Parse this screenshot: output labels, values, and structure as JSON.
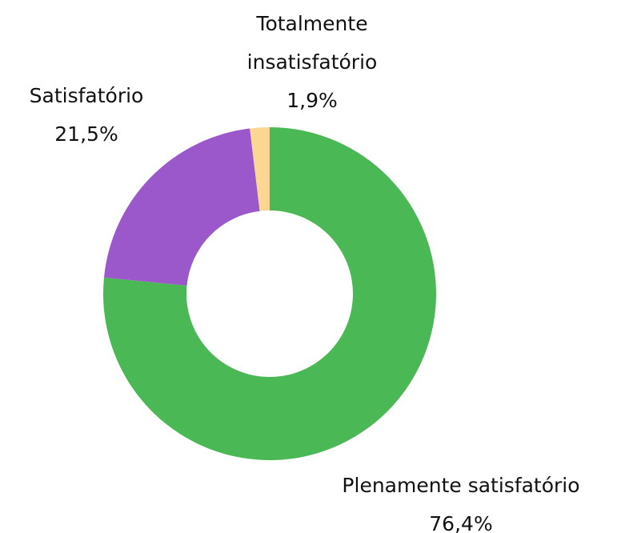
{
  "chart_data": {
    "type": "donut",
    "categories": [
      "Plenamente satisfatório",
      "Satisfatório",
      "Totalmente insatisfatório"
    ],
    "values": [
      76.4,
      21.5,
      1.9
    ],
    "value_labels": [
      "76,4%",
      "21,5%",
      "1,9%"
    ],
    "colors": [
      "#4ab854",
      "#9b58cb",
      "#fed694"
    ]
  }
}
